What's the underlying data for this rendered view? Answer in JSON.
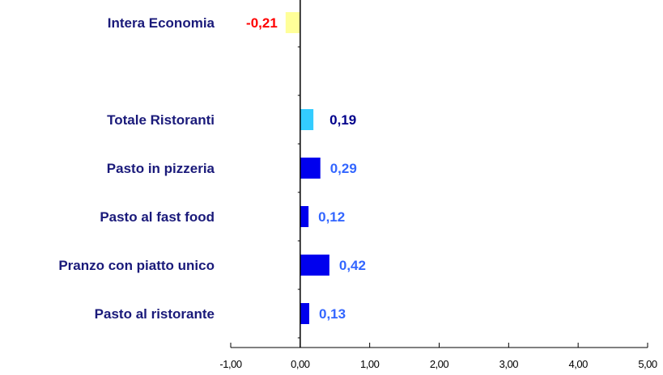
{
  "chart_data": {
    "type": "bar",
    "orientation": "horizontal",
    "categories": [
      "Intera Economia",
      "",
      "Totale Ristoranti",
      "Pasto in pizzeria",
      "Pasto al fast food",
      "Pranzo con piatto unico",
      "Pasto al ristorante"
    ],
    "values": [
      -0.21,
      null,
      0.19,
      0.29,
      0.12,
      0.42,
      0.13
    ],
    "value_labels": [
      "-0,21",
      "",
      "0,19",
      "0,29",
      "0,12",
      "0,42",
      "0,13"
    ],
    "bar_colors": [
      "#ffff99",
      null,
      "#33ccff",
      "#0000ee",
      "#0000ee",
      "#0000ee",
      "#0000ee"
    ],
    "label_colors": [
      "#ff0000",
      null,
      "#00008b",
      "#3366ff",
      "#3366ff",
      "#3366ff",
      "#3366ff"
    ],
    "xlim": [
      -1,
      5
    ],
    "xticks": [
      -1,
      0,
      1,
      2,
      3,
      4,
      5
    ],
    "xtick_labels": [
      "-1,00",
      "0,00",
      "1,00",
      "2,00",
      "3,00",
      "4,00",
      "5,00"
    ],
    "title": "",
    "xlabel": "",
    "ylabel": "",
    "grid": false,
    "legend": "none",
    "axis_color": "#000000",
    "category_label_color": "#1a1a7a"
  }
}
